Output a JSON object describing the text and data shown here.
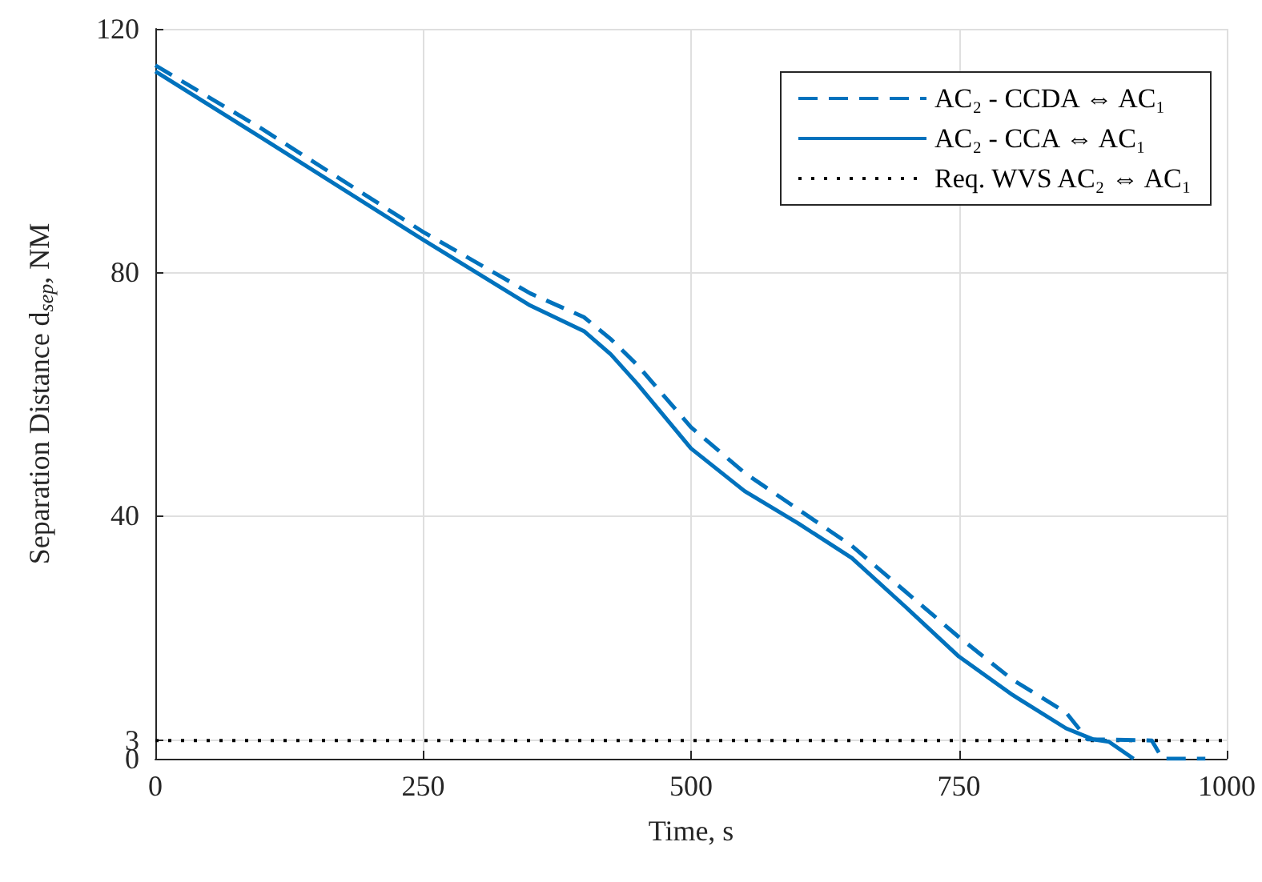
{
  "chart_data": {
    "type": "line",
    "xlabel": "Time, s",
    "ylabel": "Separation Distance d$_{sep}$, NM",
    "xlim": [
      0,
      1000
    ],
    "xticks": [
      0,
      250,
      500,
      750,
      1000
    ],
    "ylim": [
      0,
      120
    ],
    "yticks": [
      0,
      3,
      40,
      80,
      120
    ],
    "grid": true,
    "legend": "top right",
    "marker": "none",
    "series": [
      {
        "name": "AC₂ - CCDA ⇔ AC₁",
        "color": "#0072bd",
        "line_style": "dashed",
        "x": [
          0,
          100,
          250,
          350,
          400,
          425,
          450,
          500,
          550,
          600,
          650,
          700,
          750,
          800,
          850,
          870,
          930,
          940,
          980
        ],
        "values": [
          114,
          103.5,
          86.6,
          76.5,
          72.6,
          69,
          64.7,
          54.5,
          47,
          41,
          35,
          27.5,
          20,
          13,
          7.6,
          3.2,
          3,
          0,
          0
        ]
      },
      {
        "name": "AC₂ - CCA ⇔ AC₁",
        "color": "#0072bd",
        "line_style": "solid",
        "x": [
          0,
          100,
          250,
          350,
          400,
          425,
          450,
          500,
          550,
          600,
          650,
          700,
          750,
          800,
          850,
          875,
          890,
          913
        ],
        "values": [
          113,
          102,
          85.3,
          74.5,
          70.3,
          66.5,
          61.6,
          51,
          44,
          38.7,
          33,
          25,
          16.8,
          10.5,
          5,
          3.2,
          2.8,
          0
        ]
      }
    ],
    "ref_lines": [
      {
        "axis": "y",
        "value": 3,
        "label": "Req. WVS AC₂ ⇔ AC₁",
        "color": "#000000",
        "line_style": "dotted"
      }
    ]
  }
}
